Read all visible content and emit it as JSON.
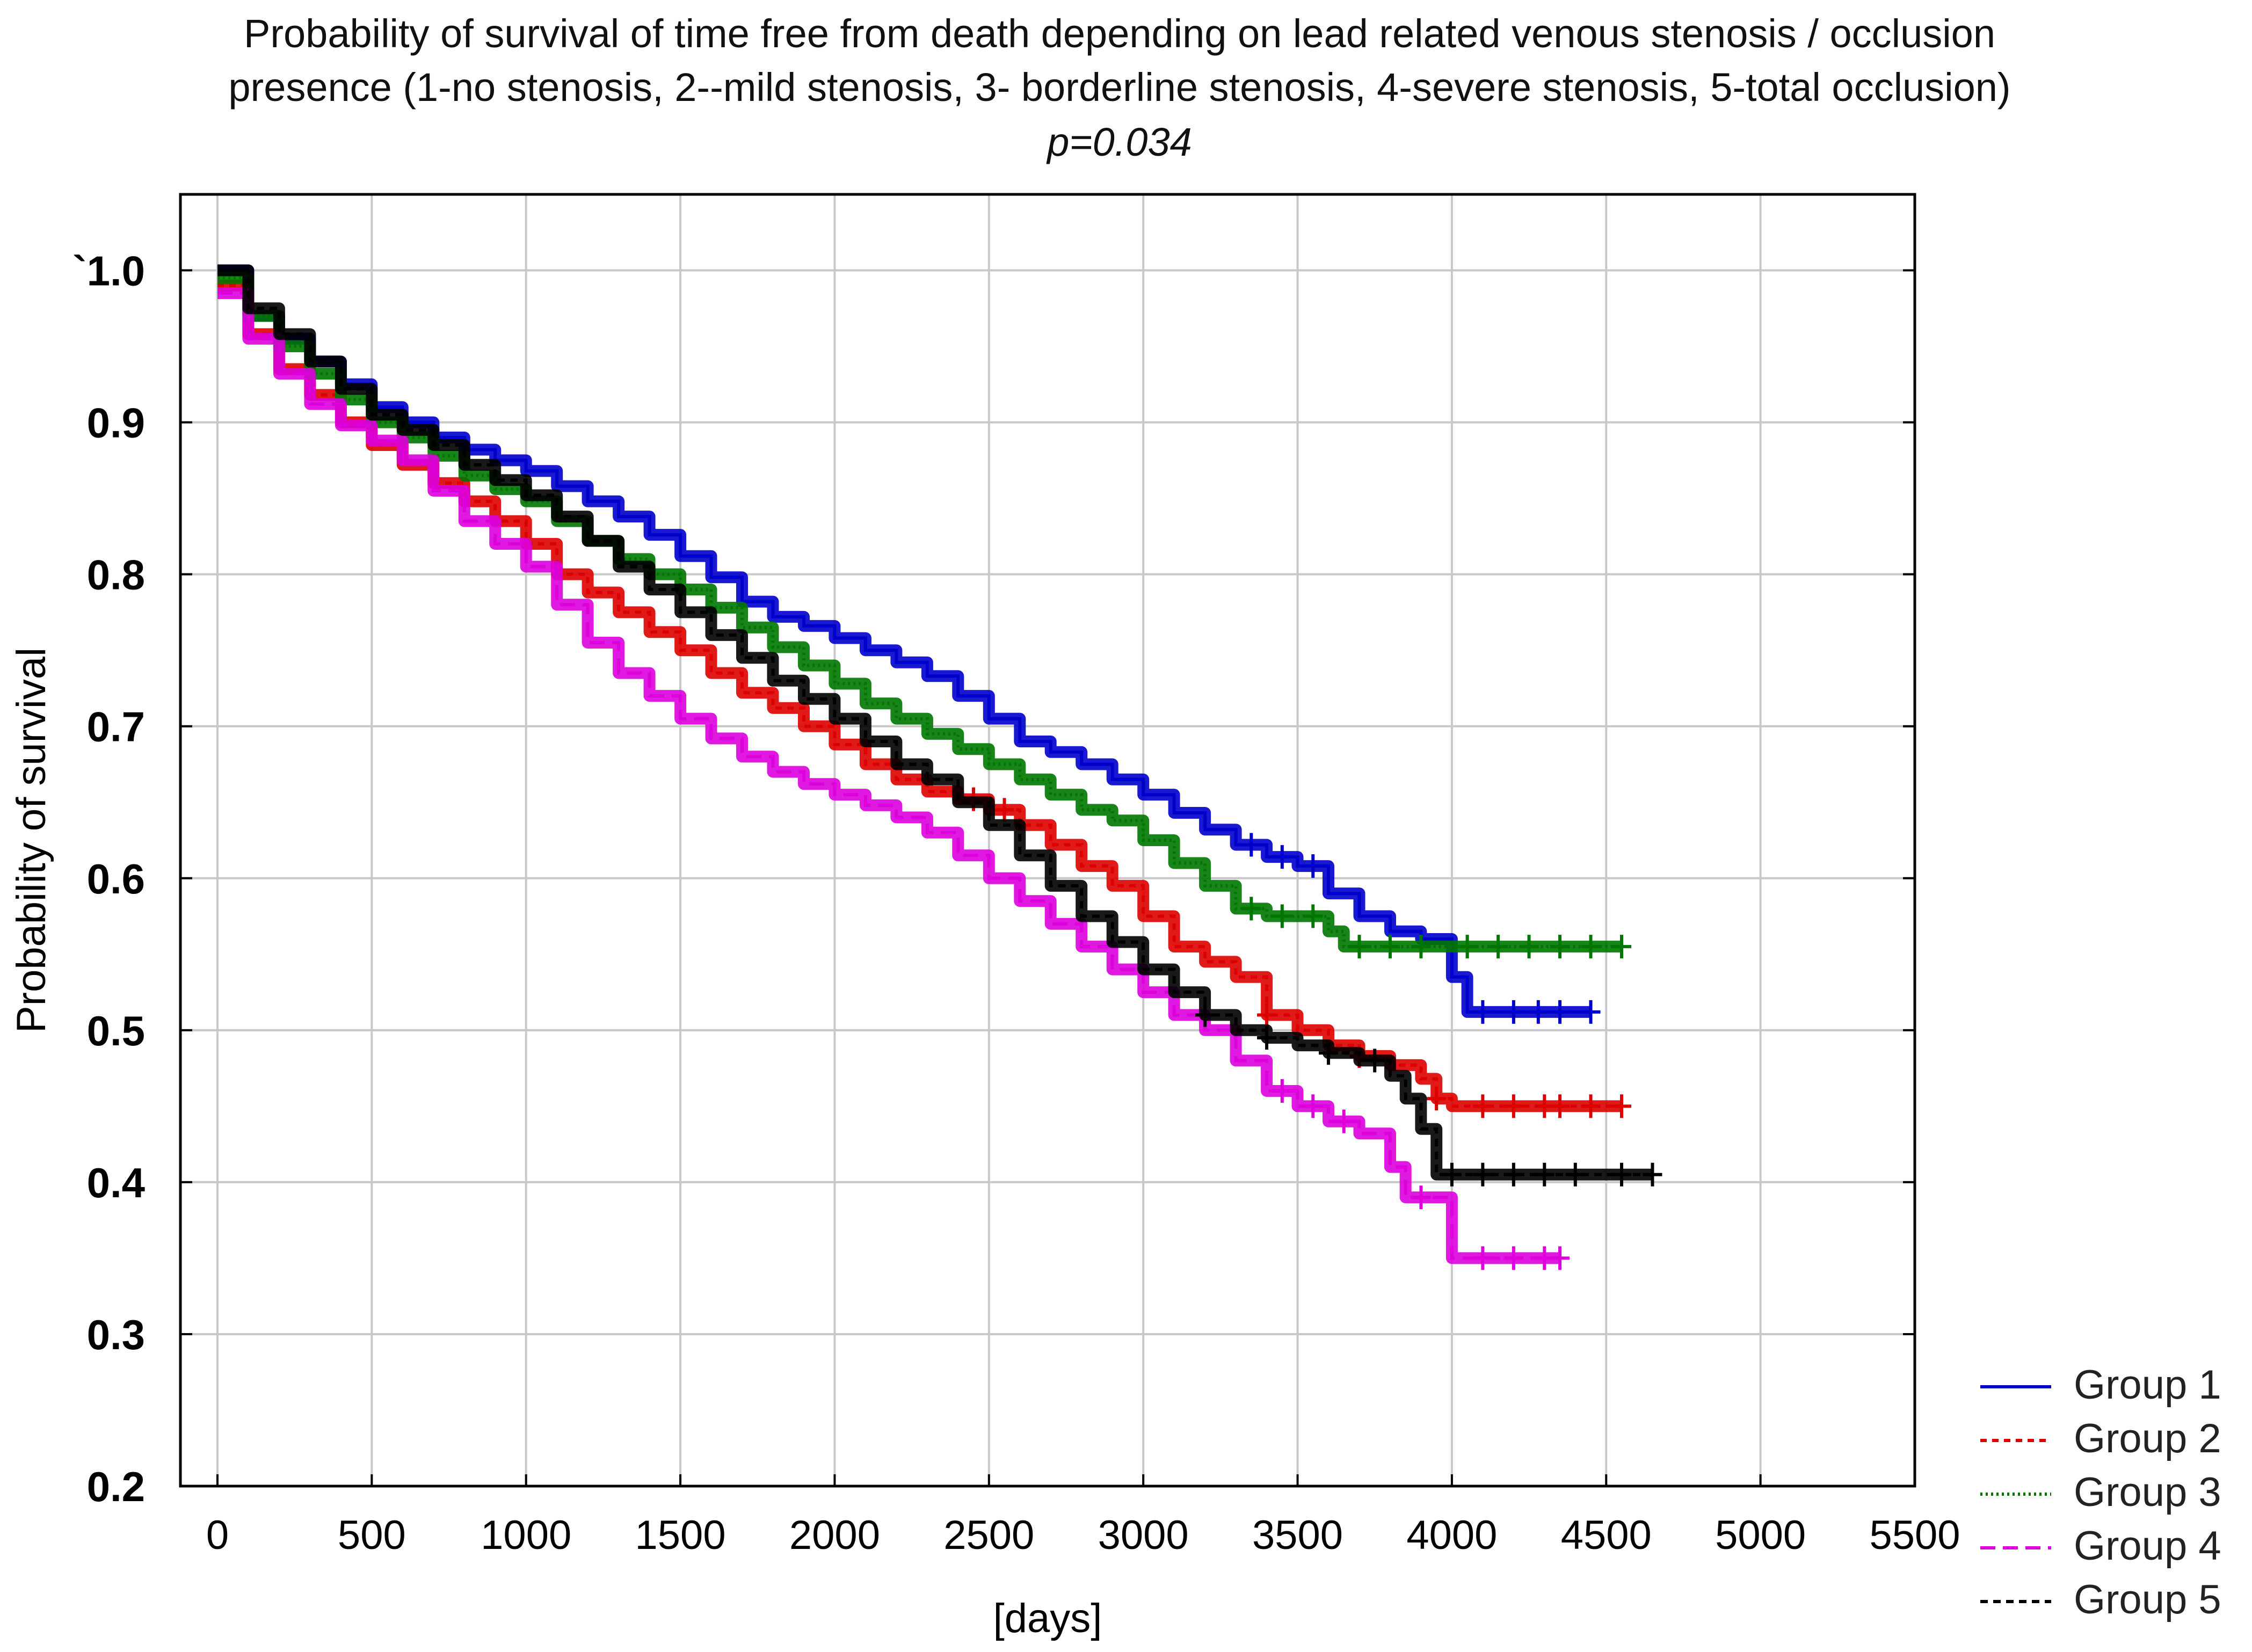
{
  "chart_data": {
    "type": "line",
    "subtype": "kaplan-meier",
    "title_lines": [
      "Probability of survival of time free from death depending on lead related venous stenosis / occlusion",
      "presence (1-no stenosis, 2--mild stenosis, 3- borderline stenosis, 4-severe stenosis, 5-total occlusion)"
    ],
    "subtitle": "p=0.034",
    "xlabel": "[days]",
    "ylabel": "Probability of survival",
    "xlim": [
      -120,
      5500
    ],
    "ylim": [
      0.2,
      1.05
    ],
    "x_ticks": [
      0,
      500,
      1000,
      1500,
      2000,
      2500,
      3000,
      3500,
      4000,
      4500,
      5000,
      5500
    ],
    "x_tick_labels": [
      "0",
      "500",
      "1000",
      "1500",
      "2000",
      "2500",
      "3000",
      "3500",
      "4000",
      "4500",
      "5000",
      "5500"
    ],
    "y_ticks": [
      1.0,
      0.9,
      0.8,
      0.7,
      0.6,
      0.5,
      0.4,
      0.3,
      0.2
    ],
    "y_tick_labels": [
      "`1.0",
      "0.9",
      "0.8",
      "0.7",
      "0.6",
      "0.5",
      "0.4",
      "0.3",
      "0.2"
    ],
    "grid": true,
    "legend_position": "bottom-right, outside plot",
    "series": [
      {
        "name": "Group 1",
        "color": "#0000cc",
        "dash": "",
        "points": [
          [
            0,
            1.0
          ],
          [
            100,
            0.97
          ],
          [
            200,
            0.955
          ],
          [
            300,
            0.94
          ],
          [
            400,
            0.925
          ],
          [
            500,
            0.91
          ],
          [
            600,
            0.9
          ],
          [
            700,
            0.89
          ],
          [
            800,
            0.882
          ],
          [
            900,
            0.875
          ],
          [
            1000,
            0.868
          ],
          [
            1100,
            0.858
          ],
          [
            1200,
            0.848
          ],
          [
            1300,
            0.838
          ],
          [
            1400,
            0.826
          ],
          [
            1500,
            0.812
          ],
          [
            1600,
            0.798
          ],
          [
            1700,
            0.782
          ],
          [
            1800,
            0.772
          ],
          [
            1900,
            0.766
          ],
          [
            2000,
            0.758
          ],
          [
            2100,
            0.75
          ],
          [
            2200,
            0.742
          ],
          [
            2300,
            0.733
          ],
          [
            2400,
            0.72
          ],
          [
            2500,
            0.705
          ],
          [
            2600,
            0.69
          ],
          [
            2700,
            0.683
          ],
          [
            2800,
            0.675
          ],
          [
            2900,
            0.665
          ],
          [
            3000,
            0.655
          ],
          [
            3100,
            0.643
          ],
          [
            3200,
            0.632
          ],
          [
            3300,
            0.622
          ],
          [
            3400,
            0.614
          ],
          [
            3500,
            0.608
          ],
          [
            3600,
            0.59
          ],
          [
            3700,
            0.575
          ],
          [
            3800,
            0.565
          ],
          [
            3900,
            0.56
          ],
          [
            4000,
            0.56
          ],
          [
            4000,
            0.535
          ],
          [
            4050,
            0.512
          ],
          [
            4450,
            0.512
          ]
        ],
        "censor_x": [
          3350,
          3450,
          3550,
          4100,
          4200,
          4280,
          4350,
          4450
        ]
      },
      {
        "name": "Group 2",
        "color": "#dd0000",
        "dash": "12,10",
        "points": [
          [
            0,
            0.99
          ],
          [
            100,
            0.958
          ],
          [
            200,
            0.935
          ],
          [
            300,
            0.918
          ],
          [
            400,
            0.9
          ],
          [
            500,
            0.885
          ],
          [
            600,
            0.872
          ],
          [
            700,
            0.86
          ],
          [
            800,
            0.848
          ],
          [
            900,
            0.835
          ],
          [
            1000,
            0.82
          ],
          [
            1100,
            0.8
          ],
          [
            1200,
            0.788
          ],
          [
            1300,
            0.775
          ],
          [
            1400,
            0.762
          ],
          [
            1500,
            0.75
          ],
          [
            1600,
            0.735
          ],
          [
            1700,
            0.722
          ],
          [
            1800,
            0.712
          ],
          [
            1900,
            0.7
          ],
          [
            2000,
            0.688
          ],
          [
            2100,
            0.675
          ],
          [
            2200,
            0.665
          ],
          [
            2300,
            0.657
          ],
          [
            2400,
            0.652
          ],
          [
            2500,
            0.645
          ],
          [
            2600,
            0.635
          ],
          [
            2700,
            0.622
          ],
          [
            2800,
            0.608
          ],
          [
            2900,
            0.595
          ],
          [
            3000,
            0.575
          ],
          [
            3100,
            0.555
          ],
          [
            3200,
            0.545
          ],
          [
            3300,
            0.535
          ],
          [
            3400,
            0.51
          ],
          [
            3500,
            0.5
          ],
          [
            3600,
            0.49
          ],
          [
            3700,
            0.483
          ],
          [
            3800,
            0.477
          ],
          [
            3900,
            0.468
          ],
          [
            3950,
            0.455
          ],
          [
            4000,
            0.45
          ],
          [
            4550,
            0.45
          ]
        ],
        "censor_x": [
          2450,
          2550,
          3400,
          3700,
          3950,
          4100,
          4200,
          4300,
          4350,
          4450,
          4550
        ]
      },
      {
        "name": "Group 3",
        "color": "#007700",
        "dash": "4,6",
        "points": [
          [
            0,
            0.995
          ],
          [
            100,
            0.97
          ],
          [
            200,
            0.95
          ],
          [
            300,
            0.932
          ],
          [
            400,
            0.915
          ],
          [
            500,
            0.9
          ],
          [
            600,
            0.89
          ],
          [
            700,
            0.878
          ],
          [
            800,
            0.865
          ],
          [
            900,
            0.856
          ],
          [
            1000,
            0.848
          ],
          [
            1100,
            0.835
          ],
          [
            1200,
            0.822
          ],
          [
            1300,
            0.81
          ],
          [
            1400,
            0.8
          ],
          [
            1500,
            0.79
          ],
          [
            1600,
            0.778
          ],
          [
            1700,
            0.765
          ],
          [
            1800,
            0.752
          ],
          [
            1900,
            0.74
          ],
          [
            2000,
            0.728
          ],
          [
            2100,
            0.715
          ],
          [
            2200,
            0.705
          ],
          [
            2300,
            0.695
          ],
          [
            2400,
            0.685
          ],
          [
            2500,
            0.675
          ],
          [
            2600,
            0.665
          ],
          [
            2700,
            0.655
          ],
          [
            2800,
            0.645
          ],
          [
            2900,
            0.638
          ],
          [
            3000,
            0.625
          ],
          [
            3100,
            0.61
          ],
          [
            3200,
            0.595
          ],
          [
            3300,
            0.58
          ],
          [
            3400,
            0.575
          ],
          [
            3500,
            0.575
          ],
          [
            3600,
            0.565
          ],
          [
            3650,
            0.555
          ],
          [
            4550,
            0.555
          ]
        ],
        "censor_x": [
          3350,
          3450,
          3550,
          3700,
          3800,
          3900,
          4050,
          4150,
          4250,
          4350,
          4450,
          4550
        ]
      },
      {
        "name": "Group 4",
        "color": "#dd00dd",
        "dash": "28,14",
        "points": [
          [
            0,
            0.985
          ],
          [
            100,
            0.955
          ],
          [
            200,
            0.932
          ],
          [
            300,
            0.912
          ],
          [
            400,
            0.898
          ],
          [
            500,
            0.888
          ],
          [
            600,
            0.875
          ],
          [
            700,
            0.855
          ],
          [
            800,
            0.835
          ],
          [
            900,
            0.82
          ],
          [
            1000,
            0.805
          ],
          [
            1100,
            0.78
          ],
          [
            1200,
            0.755
          ],
          [
            1300,
            0.735
          ],
          [
            1400,
            0.72
          ],
          [
            1500,
            0.705
          ],
          [
            1600,
            0.692
          ],
          [
            1700,
            0.68
          ],
          [
            1800,
            0.67
          ],
          [
            1900,
            0.662
          ],
          [
            2000,
            0.655
          ],
          [
            2100,
            0.648
          ],
          [
            2200,
            0.64
          ],
          [
            2300,
            0.63
          ],
          [
            2400,
            0.615
          ],
          [
            2500,
            0.6
          ],
          [
            2600,
            0.585
          ],
          [
            2700,
            0.57
          ],
          [
            2800,
            0.555
          ],
          [
            2900,
            0.54
          ],
          [
            3000,
            0.525
          ],
          [
            3100,
            0.51
          ],
          [
            3200,
            0.5
          ],
          [
            3300,
            0.48
          ],
          [
            3400,
            0.46
          ],
          [
            3500,
            0.45
          ],
          [
            3600,
            0.44
          ],
          [
            3700,
            0.432
          ],
          [
            3800,
            0.41
          ],
          [
            3850,
            0.39
          ],
          [
            4000,
            0.385
          ],
          [
            4000,
            0.35
          ],
          [
            4350,
            0.35
          ]
        ],
        "censor_x": [
          3450,
          3550,
          3650,
          3900,
          4100,
          4200,
          4300,
          4350
        ]
      },
      {
        "name": "Group 5",
        "color": "#000000",
        "dash": "14,10",
        "points": [
          [
            0,
            1.0
          ],
          [
            100,
            0.975
          ],
          [
            200,
            0.958
          ],
          [
            300,
            0.94
          ],
          [
            400,
            0.922
          ],
          [
            500,
            0.905
          ],
          [
            600,
            0.895
          ],
          [
            700,
            0.885
          ],
          [
            800,
            0.872
          ],
          [
            900,
            0.862
          ],
          [
            1000,
            0.852
          ],
          [
            1100,
            0.838
          ],
          [
            1200,
            0.822
          ],
          [
            1300,
            0.805
          ],
          [
            1400,
            0.79
          ],
          [
            1500,
            0.775
          ],
          [
            1600,
            0.76
          ],
          [
            1700,
            0.745
          ],
          [
            1800,
            0.73
          ],
          [
            1900,
            0.718
          ],
          [
            2000,
            0.705
          ],
          [
            2100,
            0.69
          ],
          [
            2200,
            0.675
          ],
          [
            2300,
            0.665
          ],
          [
            2400,
            0.65
          ],
          [
            2500,
            0.635
          ],
          [
            2600,
            0.615
          ],
          [
            2700,
            0.595
          ],
          [
            2800,
            0.575
          ],
          [
            2900,
            0.558
          ],
          [
            3000,
            0.54
          ],
          [
            3100,
            0.525
          ],
          [
            3200,
            0.51
          ],
          [
            3300,
            0.5
          ],
          [
            3400,
            0.495
          ],
          [
            3500,
            0.49
          ],
          [
            3600,
            0.485
          ],
          [
            3700,
            0.48
          ],
          [
            3800,
            0.47
          ],
          [
            3850,
            0.455
          ],
          [
            3900,
            0.435
          ],
          [
            3950,
            0.405
          ],
          [
            4650,
            0.405
          ]
        ],
        "censor_x": [
          3200,
          3400,
          3600,
          3750,
          4000,
          4100,
          4200,
          4300,
          4400,
          4550,
          4650
        ]
      }
    ]
  }
}
